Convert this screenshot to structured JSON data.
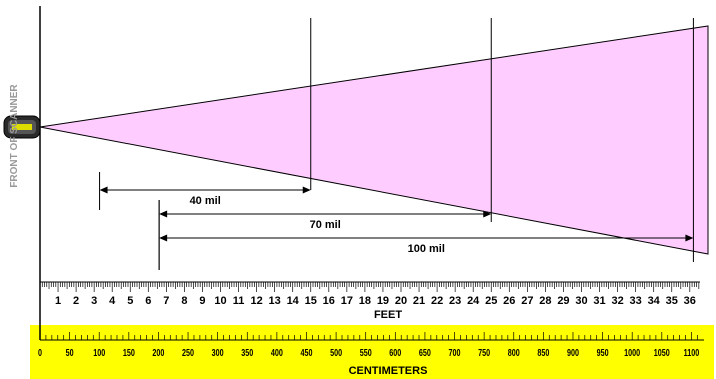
{
  "side_label": "FRONT OF SCANNER",
  "beam_color": "#ffccff",
  "cm_band_color": "#ffff00",
  "feet": {
    "unit_label": "FEET",
    "ticks": [
      1,
      2,
      3,
      4,
      5,
      6,
      7,
      8,
      9,
      10,
      11,
      12,
      13,
      14,
      15,
      16,
      17,
      18,
      19,
      20,
      21,
      22,
      23,
      24,
      25,
      26,
      27,
      28,
      29,
      30,
      31,
      32,
      33,
      34,
      35,
      36
    ]
  },
  "centimeters": {
    "unit_label": "CENTIMETERS",
    "ticks": [
      0,
      50,
      100,
      150,
      200,
      250,
      300,
      350,
      400,
      450,
      500,
      550,
      600,
      650,
      700,
      750,
      800,
      850,
      900,
      950,
      1000,
      1050,
      1100
    ]
  },
  "ranges": [
    {
      "label": "40 mil",
      "start_ft": 3.3,
      "end_ft": 15
    },
    {
      "label": "70 mil",
      "start_ft": 6.6,
      "end_ft": 25
    },
    {
      "label": "100 mil",
      "start_ft": 6.6,
      "end_ft": 36.2
    }
  ]
}
